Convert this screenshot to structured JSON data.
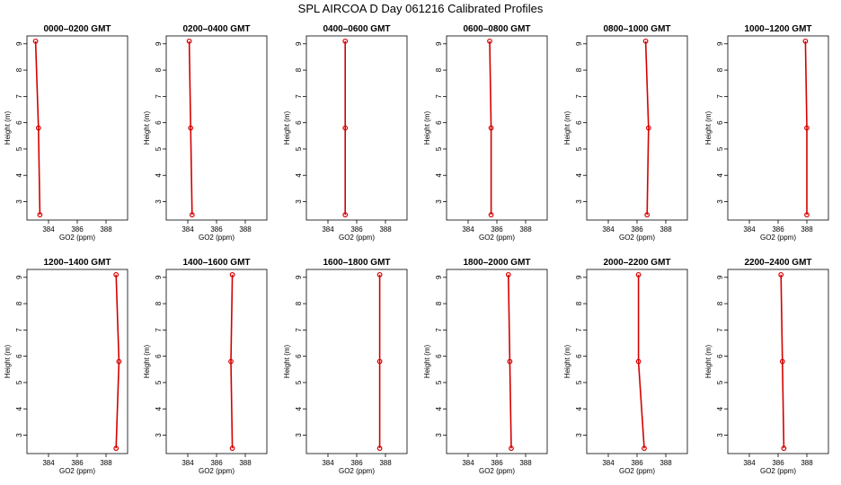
{
  "title": "SPL AIRCOA D  Day 061216  Calibrated Profiles",
  "colors": {
    "profile": "#d40000",
    "axis": "#000000"
  },
  "chart_data": {
    "type": "line",
    "xlabel": "GO2 (ppm)",
    "ylabel": "Height (m)",
    "xlim": [
      382.5,
      389.5
    ],
    "ylim": [
      2.3,
      9.3
    ],
    "xticks": [
      384,
      386,
      388
    ],
    "yticks": [
      3,
      4,
      5,
      6,
      7,
      8,
      9
    ],
    "heights": [
      9.1,
      5.8,
      2.5
    ],
    "panels": [
      {
        "title": "0000–0200 GMT",
        "values": [
          383.1,
          383.3,
          383.4
        ]
      },
      {
        "title": "0200–0400 GMT",
        "values": [
          384.1,
          384.2,
          384.3
        ]
      },
      {
        "title": "0400–0600 GMT",
        "values": [
          385.2,
          385.2,
          385.2
        ]
      },
      {
        "title": "0600–0800 GMT",
        "values": [
          385.5,
          385.6,
          385.6
        ]
      },
      {
        "title": "0800–1000 GMT",
        "values": [
          386.6,
          386.8,
          386.7
        ]
      },
      {
        "title": "1000–1200 GMT",
        "values": [
          387.9,
          388.0,
          388.0
        ]
      },
      {
        "title": "1200–1400 GMT",
        "values": [
          388.7,
          388.9,
          388.7
        ]
      },
      {
        "title": "1400–1600 GMT",
        "values": [
          387.1,
          387.0,
          387.1
        ]
      },
      {
        "title": "1600–1800 GMT",
        "values": [
          387.6,
          387.6,
          387.6
        ]
      },
      {
        "title": "1800–2000 GMT",
        "values": [
          386.8,
          386.9,
          387.0
        ]
      },
      {
        "title": "2000–2200 GMT",
        "values": [
          386.1,
          386.1,
          386.5
        ]
      },
      {
        "title": "2200–2400 GMT",
        "values": [
          386.2,
          386.3,
          386.4
        ]
      }
    ]
  }
}
